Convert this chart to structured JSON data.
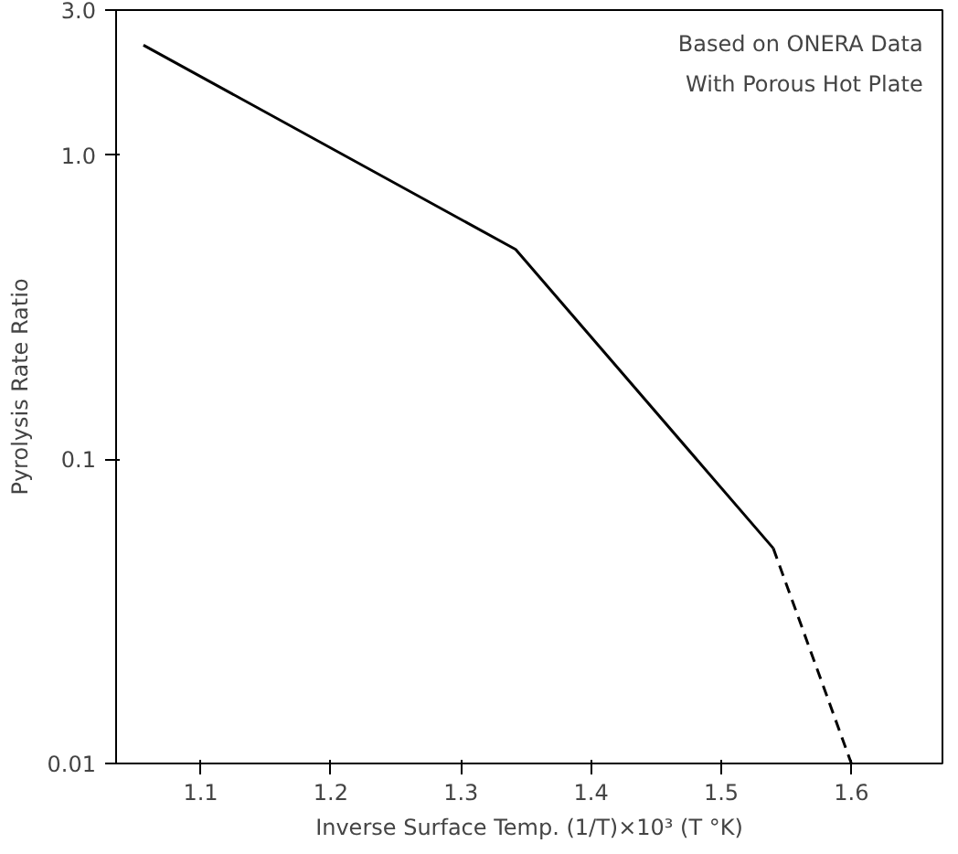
{
  "chart_data": {
    "type": "line",
    "xlabel": "Inverse Surface Temp. (1/T)×10³ (T °K)",
    "ylabel": "Pyrolysis Rate Ratio",
    "log": "y",
    "xlim": [
      1.035,
      1.67
    ],
    "xticks": [
      1.1,
      1.2,
      1.3,
      1.4,
      1.5,
      1.6
    ],
    "ylim": [
      0.01,
      3.0
    ],
    "yticks": [
      {
        "value": 0.01,
        "label": "0.01"
      },
      {
        "value": 0.1,
        "label": "0.1"
      },
      {
        "value": 1.0,
        "label": "1.0"
      },
      {
        "value": 3.0,
        "label": "3.0"
      }
    ],
    "grid": false,
    "marker": "none",
    "series": [
      {
        "color": "#000000",
        "line_style": "solid",
        "x": [
          1.056,
          1.342,
          1.54
        ],
        "values": [
          2.3,
          0.49,
          0.051
        ]
      },
      {
        "color": "#000000",
        "line_style": "dashed",
        "x": [
          1.54,
          1.6
        ],
        "values": [
          0.051,
          0.01
        ]
      }
    ],
    "annotations": [
      "Based on ONERA Data",
      "With Porous Hot Plate"
    ]
  }
}
